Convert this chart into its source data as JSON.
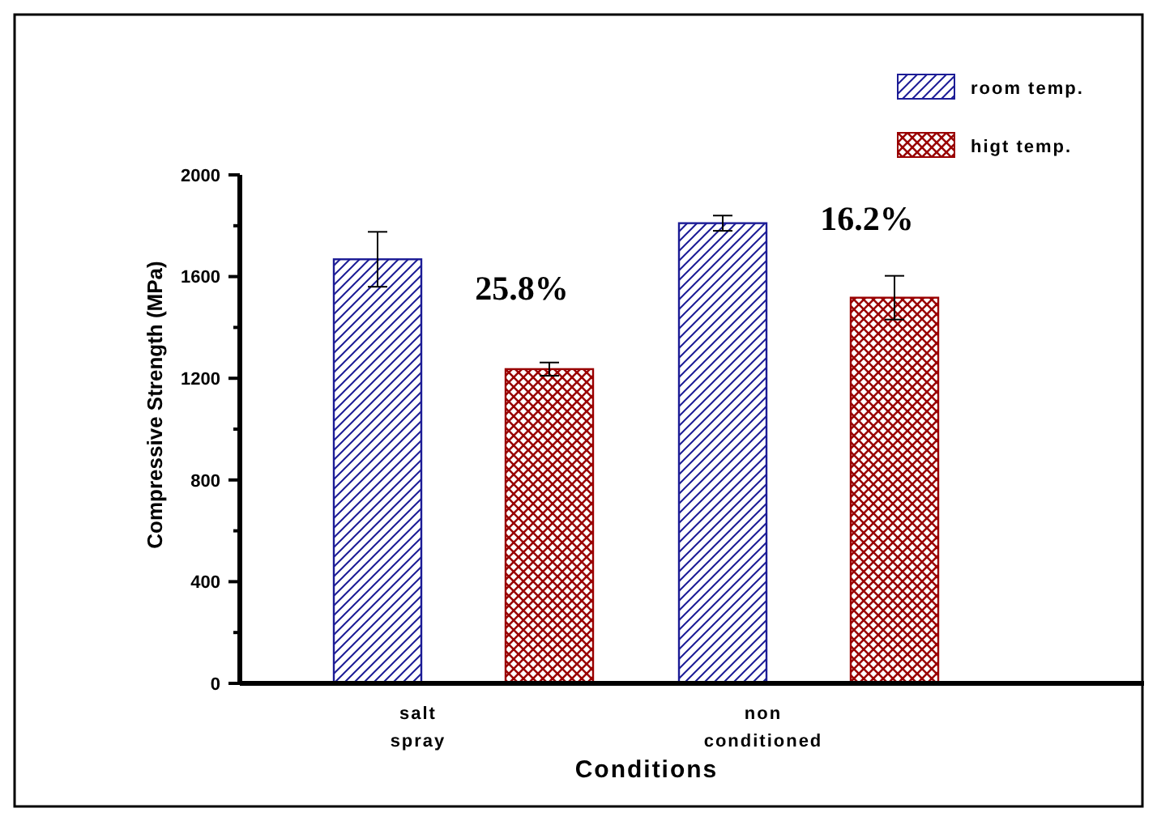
{
  "chart_data": {
    "type": "bar",
    "xlabel": "Conditions",
    "ylabel": "Compressive Strength (MPa)",
    "categories": [
      "salt spray",
      "non conditioned"
    ],
    "series": [
      {
        "name": "room temp.",
        "color": "#1c1c96",
        "values": [
          1668,
          1810
        ],
        "errors": [
          108,
          30
        ]
      },
      {
        "name": "higt temp.",
        "color": "#990000",
        "values": [
          1236,
          1517
        ],
        "errors": [
          26,
          86
        ]
      }
    ],
    "ylim": [
      0,
      2000
    ],
    "yticks": [
      0,
      {
        "value": 200,
        "label": null
      },
      400,
      {
        "value": 600,
        "label": null
      },
      800,
      {
        "value": 1000,
        "label": null
      },
      1200,
      {
        "value": 1400,
        "label": null
      },
      1600,
      {
        "value": 1800,
        "label": null
      },
      2000
    ],
    "annotations": [
      {
        "text": "25.8%",
        "x": "salt spray",
        "y": 1555
      },
      {
        "text": "16.2%",
        "x": "non conditioned",
        "y": 1830
      }
    ],
    "legend": "top right",
    "grid": false
  }
}
